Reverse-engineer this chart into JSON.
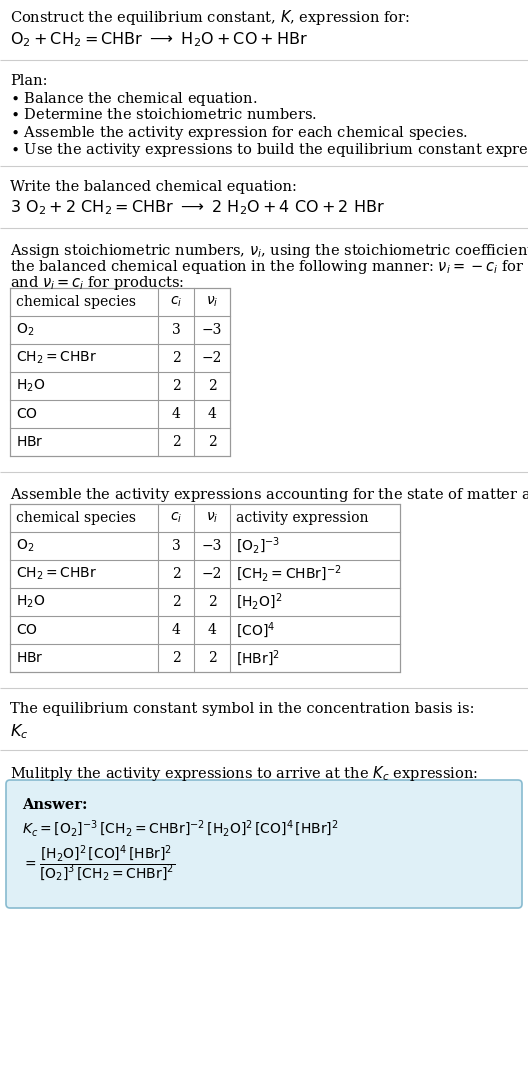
{
  "bg_color": "#ffffff",
  "answer_box_color": "#dff0f7",
  "answer_box_border": "#88bbd0",
  "table_border_color": "#999999",
  "line_color": "#cccccc",
  "text_color": "#000000",
  "font_size": 10.5,
  "lm": 10,
  "fig_w": 5.28,
  "fig_h": 10.74,
  "dpi": 100,
  "title": "Construct the equilibrium constant, $\\mathit{K}$, expression for:",
  "rxn_unbalanced": "$\\mathrm{O_2 + CH_2{=}CHBr \\;\\longrightarrow\\; H_2O + CO + HBr}$",
  "plan_header": "Plan:",
  "plan_items": [
    "\\bullet\\; Balance the chemical equation.",
    "\\bullet\\; Determine the stoichiometric numbers.",
    "\\bullet\\; Assemble the activity expression for each chemical species.",
    "\\bullet\\; Use the activity expressions to build the equilibrium constant expression."
  ],
  "balanced_header": "Write the balanced chemical equation:",
  "rxn_balanced": "$\\mathrm{3\\,O_2 + 2\\,CH_2{=}CHBr \\;\\longrightarrow\\; 2\\,H_2O + 4\\,CO + 2\\,HBr}$",
  "stoich_text1": "Assign stoichiometric numbers, $\\nu_i$, using the stoichiometric coefficients, $c_i$, from",
  "stoich_text2": "the balanced chemical equation in the following manner: $\\nu_i = -c_i$ for reactants",
  "stoich_text3": "and $\\nu_i = c_i$ for products:",
  "t1_headers": [
    "chemical species",
    "$c_i$",
    "$\\nu_i$"
  ],
  "t1_species": [
    "$\\mathrm{O_2}$",
    "$\\mathrm{CH_2{=}CHBr}$",
    "$\\mathrm{H_2O}$",
    "$\\mathrm{CO}$",
    "$\\mathrm{HBr}$"
  ],
  "t1_ci": [
    "3",
    "2",
    "2",
    "4",
    "2"
  ],
  "t1_vi": [
    "−3",
    "−2",
    "2",
    "4",
    "2"
  ],
  "activity_text": "Assemble the activity expressions accounting for the state of matter and $\\nu_i$:",
  "t2_headers": [
    "chemical species",
    "$c_i$",
    "$\\nu_i$",
    "activity expression"
  ],
  "t2_species": [
    "$\\mathrm{O_2}$",
    "$\\mathrm{CH_2{=}CHBr}$",
    "$\\mathrm{H_2O}$",
    "$\\mathrm{CO}$",
    "$\\mathrm{HBr}$"
  ],
  "t2_ci": [
    "3",
    "2",
    "2",
    "4",
    "2"
  ],
  "t2_vi": [
    "−3",
    "−2",
    "2",
    "4",
    "2"
  ],
  "t2_activity": [
    "$[\\mathrm{O_2}]^{-3}$",
    "$[\\mathrm{CH_2{=}CHBr}]^{-2}$",
    "$[\\mathrm{H_2O}]^{2}$",
    "$[\\mathrm{CO}]^{4}$",
    "$[\\mathrm{HBr}]^{2}$"
  ],
  "kc_text": "The equilibrium constant symbol in the concentration basis is:",
  "kc_symbol": "$K_c$",
  "multiply_text": "Mulitply the activity expressions to arrive at the $K_c$ expression:",
  "answer_label": "Answer:",
  "kc_eq_line1": "$K_c = [\\mathrm{O_2}]^{-3}\\,[\\mathrm{CH_2{=}CHBr}]^{-2}\\,[\\mathrm{H_2O}]^{2}\\,[\\mathrm{CO}]^{4}\\,[\\mathrm{HBr}]^{2} = \\dfrac{[\\mathrm{H_2O}]^{2}\\,[\\mathrm{CO}]^{4}\\,[\\mathrm{HBr}]^{2}}{[\\mathrm{O_2}]^{3}\\,[\\mathrm{CH_2{=}CHBr}]^{2}}$"
}
